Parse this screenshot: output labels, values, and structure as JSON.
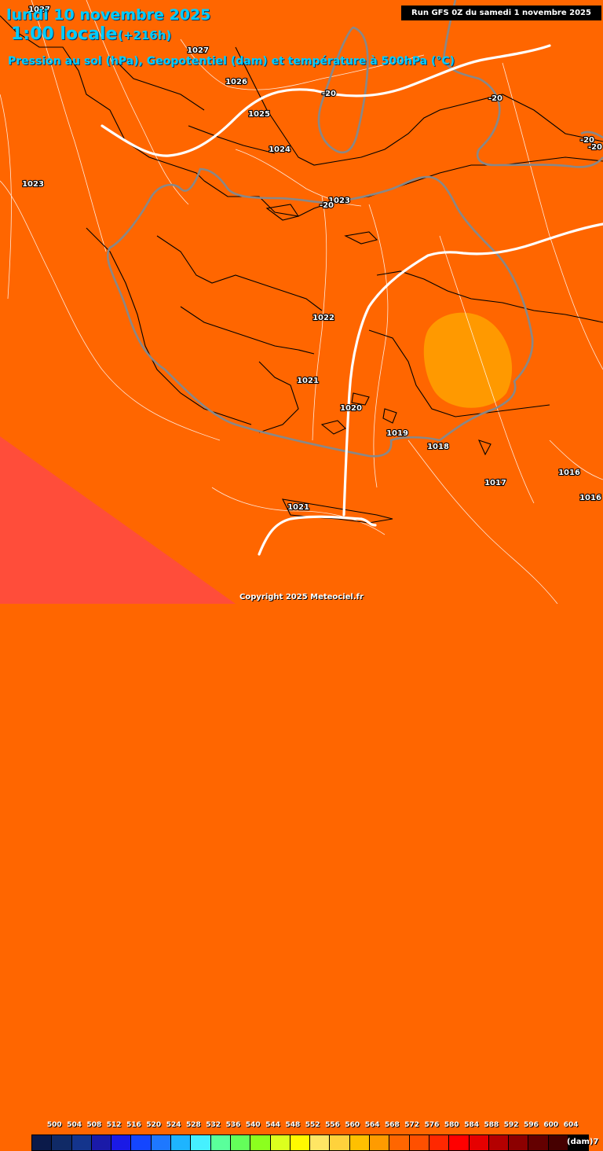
{
  "header": {
    "date": "lundi 10 novembre 2025",
    "time": "1:00 locale",
    "lead": "(+216h)",
    "parameters": "Pression au sol (hPa), Geopotentiel (dam) et température à 500hPa (°C)",
    "run": "Run GFS 0Z du samedi 1 novembre 2025"
  },
  "isobar_labels": [
    "1027",
    "1027",
    "1026",
    "1025",
    "1024",
    "1023",
    "1023",
    "1022",
    "1021",
    "1020",
    "1019",
    "1018",
    "1017",
    "1016",
    "1016",
    "1021"
  ],
  "isotherm_labels": [
    "-20",
    "-20",
    "-20",
    "-20",
    "-20"
  ],
  "legend": {
    "values": [
      "500",
      "504",
      "508",
      "512",
      "516",
      "520",
      "524",
      "528",
      "532",
      "536",
      "540",
      "544",
      "548",
      "552",
      "556",
      "560",
      "564",
      "568",
      "572",
      "576",
      "580",
      "584",
      "588",
      "592",
      "596",
      "600",
      "604"
    ],
    "colors": [
      "#0b1a4a",
      "#102a66",
      "#14348c",
      "#1a1aa8",
      "#1a1ae6",
      "#1446ff",
      "#1e78ff",
      "#1eb4ff",
      "#46f0ff",
      "#5aff9b",
      "#64ff5a",
      "#8cff1e",
      "#dcff1e",
      "#fffa00",
      "#ffe664",
      "#ffd23c",
      "#ffc000",
      "#ff9b00",
      "#ff6600",
      "#ff5000",
      "#ff2800",
      "#ff0000",
      "#e60000",
      "#b40000",
      "#8c0000",
      "#640000",
      "#460000",
      "#000000"
    ],
    "unit": "(dam)7"
  },
  "copyright": "Copyright 2025 Meteociel.fr",
  "colors": {
    "background": "#ff6600",
    "lower_left_band": "#ff4d3a",
    "warm_patch": "#ff9900",
    "title": "#00ccff",
    "isotherm": "#888888",
    "contour_588": "#ffffff"
  }
}
